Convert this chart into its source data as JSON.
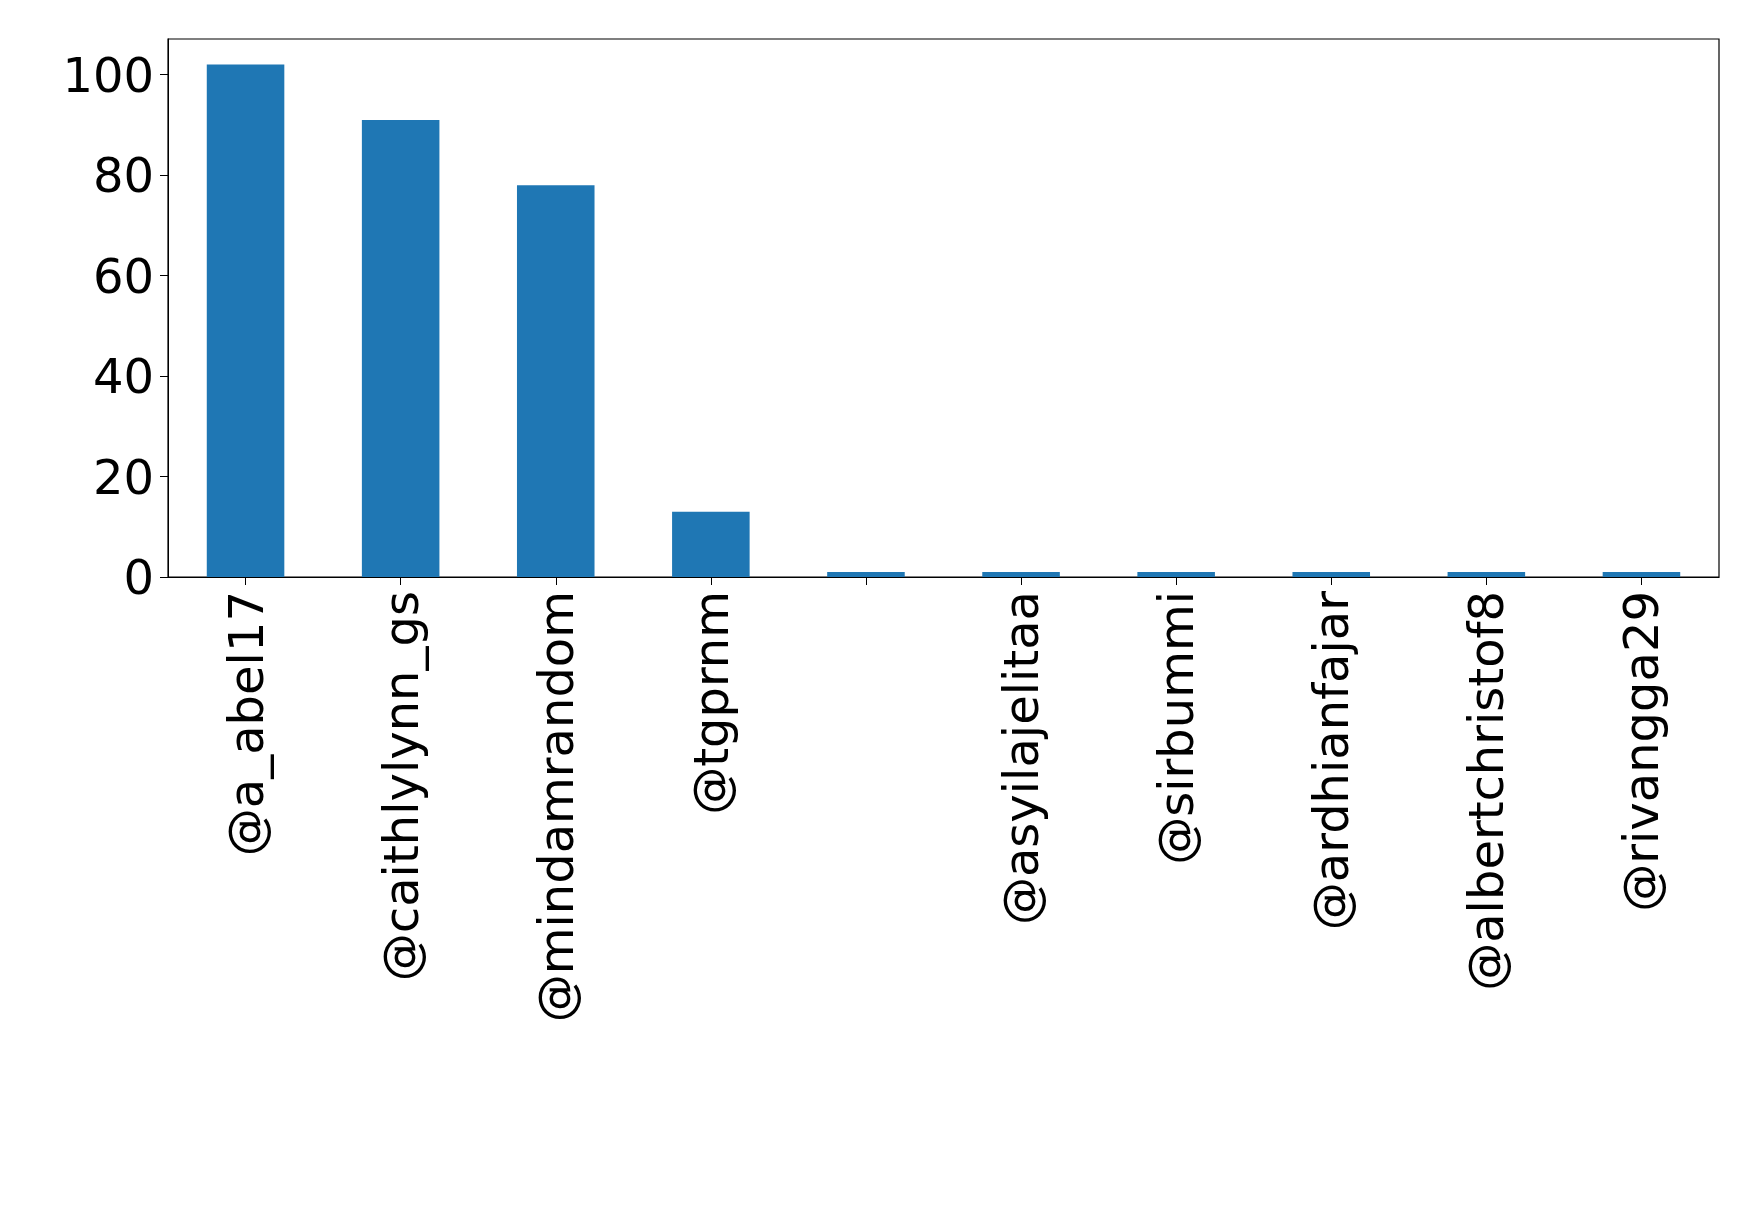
{
  "chart_data": {
    "type": "bar",
    "categories": [
      "@a_abel17",
      "@caithlylynn_gs",
      "@mindamrandom",
      "@tgprnm",
      null,
      "@asyilajelitaa",
      "@sirbummi",
      "@ardhianfajar",
      "@albertchristof8",
      "@rivangga29"
    ],
    "values": [
      102,
      91,
      78,
      13,
      1,
      1,
      1,
      1,
      1,
      1
    ],
    "color": "#1f77b4",
    "ylim": [
      0,
      107.1
    ],
    "yticks": [
      0,
      20,
      40,
      60,
      80,
      100
    ]
  }
}
